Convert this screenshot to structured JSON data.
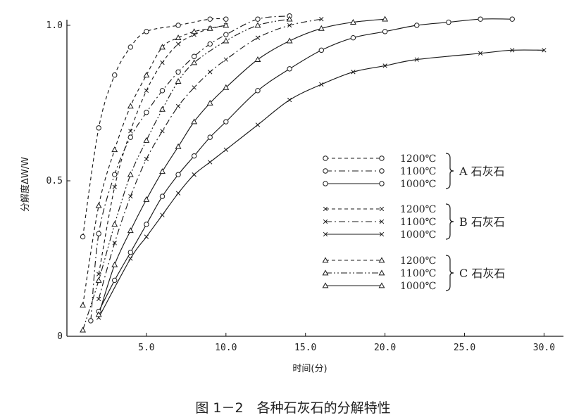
{
  "chart_data": {
    "type": "line",
    "title": "",
    "xlabel": "时间(分)",
    "ylabel": "分解度ΔW/W",
    "xlim": [
      0,
      31
    ],
    "ylim": [
      0,
      1.0
    ],
    "x_ticks": [
      "5.0",
      "10.0",
      "15.0",
      "20.0",
      "25.0",
      "30.0"
    ],
    "y_ticks": [
      "0",
      "0.5",
      "1.0"
    ],
    "grid": false,
    "legend_position": "right",
    "legend_groups": [
      {
        "label": "A 石灰石",
        "lines": [
          "1200℃",
          "1100℃",
          "1000℃"
        ]
      },
      {
        "label": "B 石灰石",
        "lines": [
          "1200℃",
          "1100℃",
          "1000℃"
        ]
      },
      {
        "label": "C 石灰石",
        "lines": [
          "1200℃",
          "1100℃",
          "1000℃"
        ]
      }
    ],
    "series": [
      {
        "name": "A 石灰石 1200℃",
        "marker": "circle",
        "dash": "dashed",
        "x": [
          1,
          2,
          3,
          4,
          5,
          7,
          9,
          10
        ],
        "y": [
          0.32,
          0.67,
          0.84,
          0.93,
          0.98,
          1.0,
          1.02,
          1.02
        ]
      },
      {
        "name": "A 石灰石 1100℃",
        "marker": "circle",
        "dash": "dashdot",
        "x": [
          1.5,
          2,
          3,
          4,
          5,
          6,
          7,
          8,
          9,
          10,
          12,
          14
        ],
        "y": [
          0.05,
          0.33,
          0.52,
          0.64,
          0.72,
          0.79,
          0.85,
          0.9,
          0.94,
          0.97,
          1.02,
          1.03
        ]
      },
      {
        "name": "A 石灰石 1000℃",
        "marker": "circle",
        "dash": "solid",
        "x": [
          2,
          3,
          4,
          5,
          6,
          7,
          8,
          9,
          10,
          12,
          14,
          16,
          18,
          20,
          22,
          24,
          26,
          28
        ],
        "y": [
          0.08,
          0.18,
          0.27,
          0.36,
          0.45,
          0.52,
          0.58,
          0.64,
          0.69,
          0.79,
          0.86,
          0.92,
          0.96,
          0.98,
          1.0,
          1.01,
          1.02,
          1.02
        ]
      },
      {
        "name": "B 石灰石 1200℃",
        "marker": "cross",
        "dash": "dashed",
        "x": [
          2,
          3,
          4,
          5,
          6,
          7,
          8,
          9,
          10
        ],
        "y": [
          0.2,
          0.48,
          0.66,
          0.79,
          0.88,
          0.94,
          0.97,
          0.99,
          1.0
        ]
      },
      {
        "name": "B 石灰石 1100℃",
        "marker": "cross",
        "dash": "dashdot",
        "x": [
          2,
          3,
          4,
          5,
          6,
          7,
          8,
          9,
          10,
          12,
          14,
          16
        ],
        "y": [
          0.12,
          0.3,
          0.45,
          0.57,
          0.66,
          0.74,
          0.8,
          0.85,
          0.89,
          0.96,
          1.0,
          1.02
        ]
      },
      {
        "name": "B 石灰石 1000℃",
        "marker": "cross",
        "dash": "solid",
        "x": [
          2,
          4,
          5,
          6,
          7,
          8,
          9,
          10,
          12,
          14,
          16,
          18,
          20,
          22,
          26,
          28,
          30
        ],
        "y": [
          0.06,
          0.25,
          0.32,
          0.39,
          0.46,
          0.52,
          0.56,
          0.6,
          0.68,
          0.76,
          0.81,
          0.85,
          0.87,
          0.89,
          0.91,
          0.92,
          0.92
        ]
      },
      {
        "name": "C 石灰石 1200℃",
        "marker": "triangle",
        "dash": "dashed",
        "x": [
          1,
          2,
          3,
          4,
          5,
          6,
          7,
          8,
          9,
          10
        ],
        "y": [
          0.1,
          0.42,
          0.6,
          0.74,
          0.84,
          0.93,
          0.96,
          0.98,
          0.99,
          1.0
        ]
      },
      {
        "name": "C 石灰石 1100℃",
        "marker": "triangle",
        "dash": "dashdotdot",
        "x": [
          1,
          2,
          3,
          4,
          5,
          6,
          7,
          8,
          10,
          12,
          14
        ],
        "y": [
          0.02,
          0.18,
          0.36,
          0.52,
          0.63,
          0.73,
          0.82,
          0.88,
          0.95,
          1.0,
          1.02
        ]
      },
      {
        "name": "C 石灰石 1000℃",
        "marker": "triangle",
        "dash": "solid",
        "x": [
          2,
          3,
          4,
          5,
          6,
          7,
          8,
          9,
          10,
          12,
          14,
          16,
          18,
          20
        ],
        "y": [
          0.07,
          0.23,
          0.34,
          0.44,
          0.53,
          0.61,
          0.69,
          0.75,
          0.8,
          0.89,
          0.95,
          0.99,
          1.01,
          1.02
        ]
      }
    ]
  },
  "caption": "图 1－2　各种石灰石的分解特性",
  "colors": {
    "ink": "#1a1a1a",
    "background": "#ffffff"
  }
}
